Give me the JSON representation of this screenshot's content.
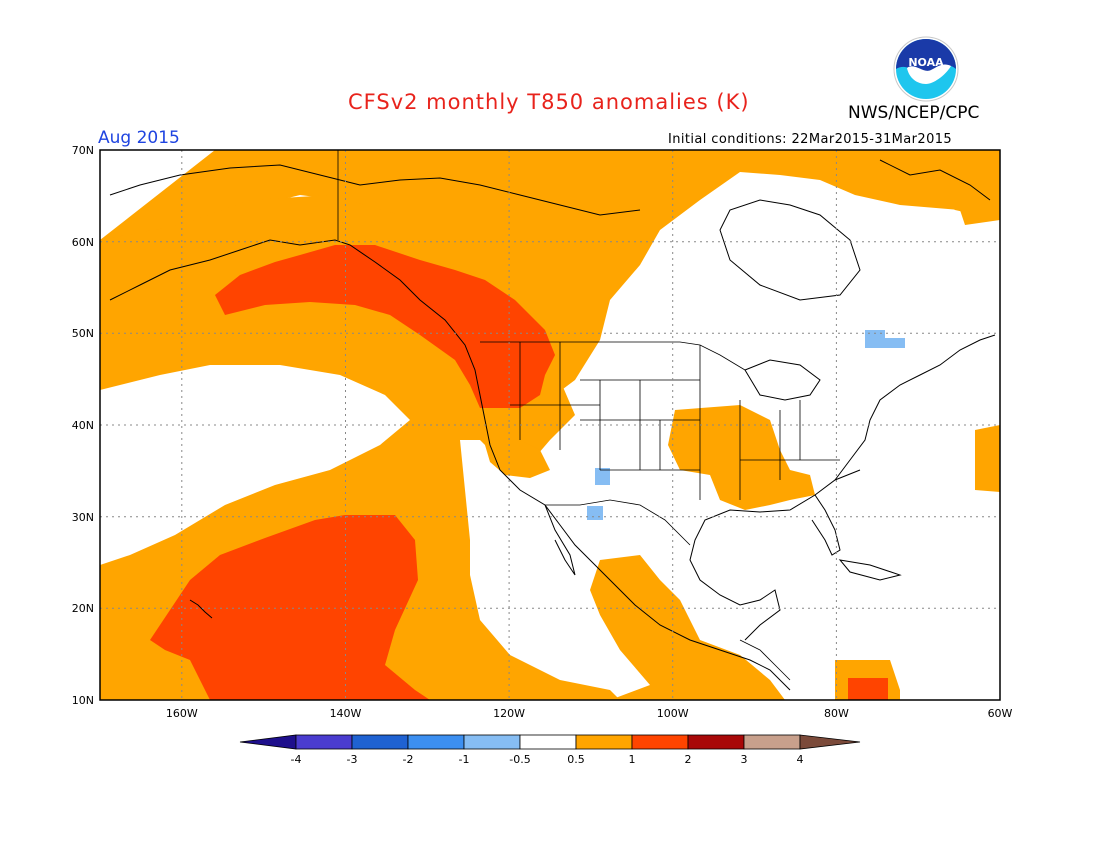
{
  "header": {
    "title": "CFSv2 monthly T850 anomalies (K)",
    "agency": "NWS/NCEP/CPC",
    "month": "Aug 2015",
    "initial_conditions": "Initial conditions: 22Mar2015-31Mar2015",
    "logo_text": "NOAA"
  },
  "axes": {
    "lat_labels": [
      "70N",
      "60N",
      "50N",
      "40N",
      "30N",
      "20N",
      "10N"
    ],
    "lon_labels": [
      "160W",
      "140W",
      "120W",
      "100W",
      "80W",
      "60W"
    ]
  },
  "colorbar": {
    "labels": [
      "-4",
      "-3",
      "-2",
      "-1",
      "-0.5",
      "0.5",
      "1",
      "2",
      "3",
      "4"
    ],
    "colors": [
      "#1e0f8c",
      "#4a3ccf",
      "#1f62d2",
      "#3c8ff0",
      "#86bdf3",
      "#ffffff",
      "#ffa500",
      "#ff4400",
      "#a80808",
      "#c8a08c",
      "#7b4a3a"
    ]
  },
  "colors": {
    "warm_light": "#ffa500",
    "warm_strong": "#ff4400",
    "cool_light": "#86bdf3"
  }
}
